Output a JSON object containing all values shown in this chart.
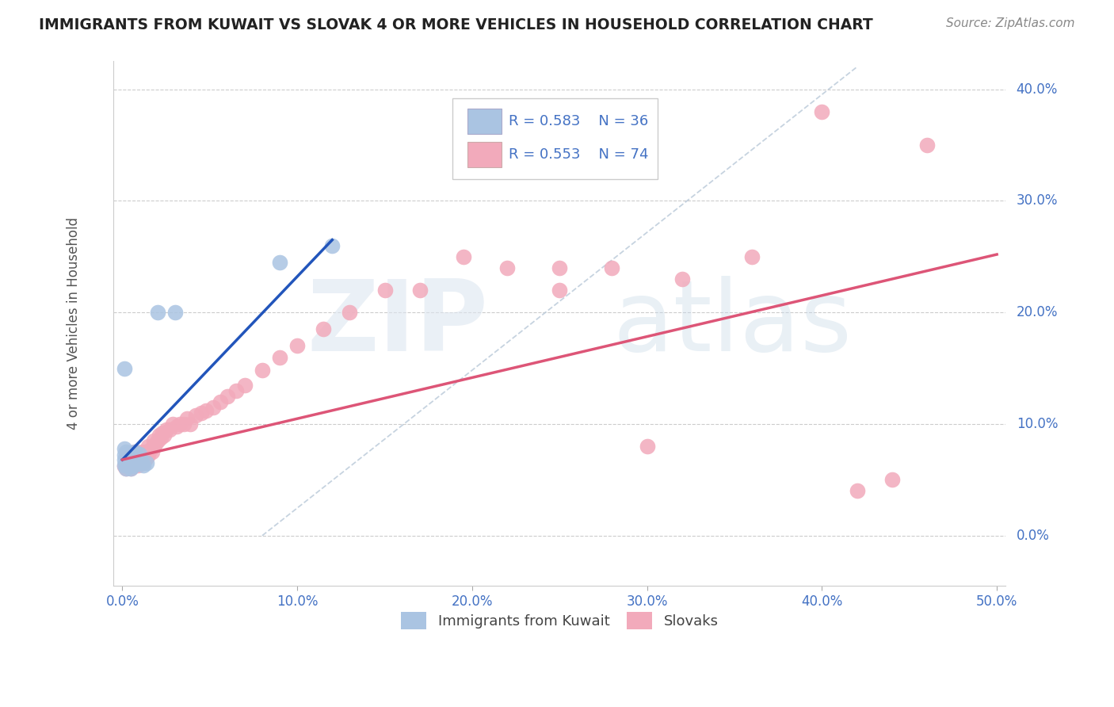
{
  "title": "IMMIGRANTS FROM KUWAIT VS SLOVAK 4 OR MORE VEHICLES IN HOUSEHOLD CORRELATION CHART",
  "source": "Source: ZipAtlas.com",
  "ylabel": "4 or more Vehicles in Household",
  "xlim": [
    -0.005,
    0.505
  ],
  "ylim": [
    -0.045,
    0.425
  ],
  "xticks": [
    0.0,
    0.1,
    0.2,
    0.3,
    0.4,
    0.5
  ],
  "yticks": [
    0.0,
    0.1,
    0.2,
    0.3,
    0.4
  ],
  "xticklabels": [
    "0.0%",
    "10.0%",
    "20.0%",
    "30.0%",
    "40.0%",
    "50.0%"
  ],
  "yticklabels": [
    "0.0%",
    "10.0%",
    "20.0%",
    "30.0%",
    "40.0%"
  ],
  "kuwait_R": 0.583,
  "kuwait_N": 36,
  "slovak_R": 0.553,
  "slovak_N": 74,
  "kuwait_color": "#aac4e2",
  "slovak_color": "#f2aabb",
  "kuwait_line_color": "#2255bb",
  "slovak_line_color": "#dd5577",
  "background_color": "#ffffff",
  "kuwait_x": [
    0.001,
    0.001,
    0.001,
    0.001,
    0.002,
    0.002,
    0.002,
    0.002,
    0.003,
    0.003,
    0.003,
    0.004,
    0.004,
    0.005,
    0.005,
    0.005,
    0.006,
    0.006,
    0.006,
    0.007,
    0.007,
    0.007,
    0.008,
    0.008,
    0.009,
    0.009,
    0.01,
    0.01,
    0.011,
    0.012,
    0.014,
    0.02,
    0.03,
    0.09,
    0.12,
    0.001
  ],
  "kuwait_y": [
    0.063,
    0.068,
    0.072,
    0.078,
    0.06,
    0.065,
    0.07,
    0.075,
    0.063,
    0.068,
    0.073,
    0.063,
    0.07,
    0.06,
    0.065,
    0.07,
    0.062,
    0.067,
    0.072,
    0.065,
    0.07,
    0.075,
    0.065,
    0.07,
    0.065,
    0.07,
    0.068,
    0.073,
    0.065,
    0.063,
    0.065,
    0.2,
    0.2,
    0.245,
    0.26,
    0.15
  ],
  "slovak_x": [
    0.001,
    0.002,
    0.002,
    0.003,
    0.003,
    0.004,
    0.004,
    0.005,
    0.005,
    0.006,
    0.006,
    0.007,
    0.007,
    0.007,
    0.008,
    0.008,
    0.009,
    0.009,
    0.01,
    0.01,
    0.011,
    0.011,
    0.012,
    0.012,
    0.013,
    0.013,
    0.014,
    0.015,
    0.015,
    0.016,
    0.017,
    0.018,
    0.018,
    0.019,
    0.02,
    0.021,
    0.022,
    0.023,
    0.024,
    0.025,
    0.027,
    0.029,
    0.031,
    0.033,
    0.035,
    0.037,
    0.039,
    0.042,
    0.045,
    0.048,
    0.052,
    0.056,
    0.06,
    0.065,
    0.07,
    0.08,
    0.09,
    0.1,
    0.115,
    0.13,
    0.15,
    0.17,
    0.195,
    0.22,
    0.25,
    0.28,
    0.32,
    0.36,
    0.4,
    0.44,
    0.25,
    0.3,
    0.46,
    0.42
  ],
  "slovak_y": [
    0.062,
    0.06,
    0.068,
    0.063,
    0.07,
    0.062,
    0.068,
    0.06,
    0.067,
    0.065,
    0.072,
    0.063,
    0.068,
    0.075,
    0.065,
    0.072,
    0.063,
    0.07,
    0.065,
    0.072,
    0.068,
    0.075,
    0.065,
    0.07,
    0.068,
    0.075,
    0.07,
    0.072,
    0.08,
    0.077,
    0.075,
    0.08,
    0.085,
    0.082,
    0.085,
    0.09,
    0.088,
    0.092,
    0.09,
    0.095,
    0.095,
    0.1,
    0.098,
    0.1,
    0.1,
    0.105,
    0.1,
    0.108,
    0.11,
    0.112,
    0.115,
    0.12,
    0.125,
    0.13,
    0.135,
    0.148,
    0.16,
    0.17,
    0.185,
    0.2,
    0.22,
    0.22,
    0.25,
    0.24,
    0.22,
    0.24,
    0.23,
    0.25,
    0.38,
    0.05,
    0.24,
    0.08,
    0.35,
    0.04
  ],
  "kuwait_trend_x": [
    0.0,
    0.12
  ],
  "kuwait_trend_y": [
    0.068,
    0.265
  ],
  "slovak_trend_x": [
    0.0,
    0.5
  ],
  "slovak_trend_y": [
    0.068,
    0.252
  ],
  "ref_line_x": [
    0.08,
    0.42
  ],
  "ref_line_y": [
    0.0,
    0.42
  ]
}
